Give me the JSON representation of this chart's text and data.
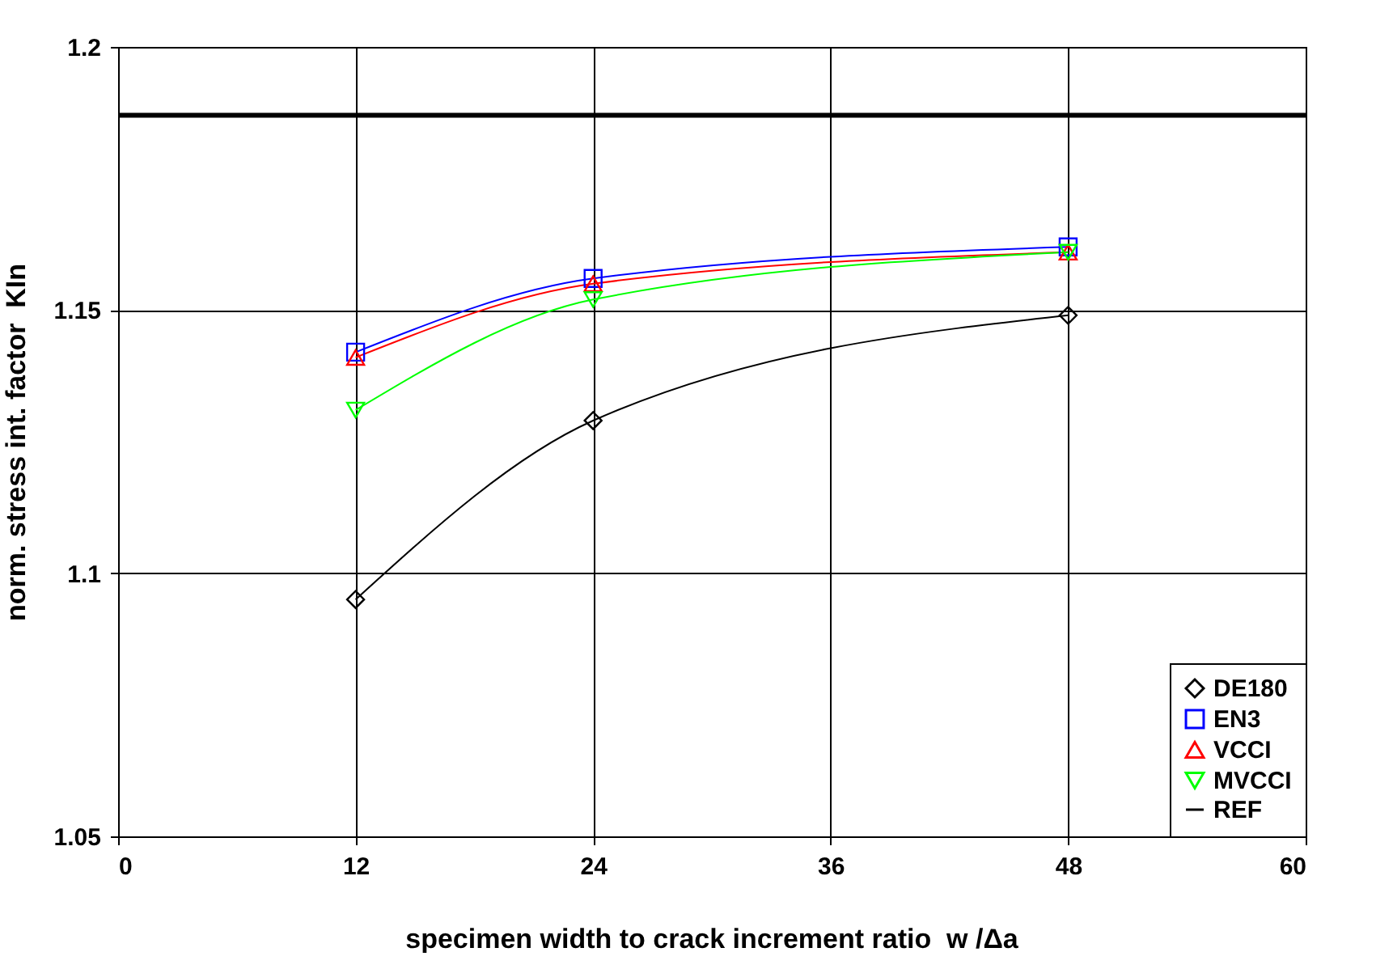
{
  "chart_data": {
    "type": "line",
    "xlabel": "specimen width to crack increment ratio  w /Δa",
    "ylabel": "norm. stress int. factor  KIn",
    "x": [
      12,
      24,
      48
    ],
    "xlim": [
      0,
      60
    ],
    "xticks": [
      0,
      12,
      24,
      36,
      48,
      60
    ],
    "ylim": [
      1.05,
      1.2
    ],
    "yticks": [
      1.05,
      1.1,
      1.15,
      1.2
    ],
    "grid": true,
    "legend": "bottom right",
    "line_style": "solid",
    "series": [
      {
        "name": "DE180",
        "color": "#000000",
        "marker": "diamond",
        "values": [
          1.095,
          1.129,
          1.149
        ]
      },
      {
        "name": "EN3",
        "color": "#0000ff",
        "marker": "square",
        "values": [
          1.142,
          1.156,
          1.162
        ]
      },
      {
        "name": "VCCI",
        "color": "#ff0000",
        "marker": "triangle",
        "values": [
          1.141,
          1.155,
          1.161
        ]
      },
      {
        "name": "MVCCI",
        "color": "#00ff00",
        "marker": "triangle-down",
        "values": [
          1.131,
          1.152,
          1.161
        ]
      },
      {
        "name": "REF",
        "color": "#000000",
        "marker": "none",
        "x": [
          0,
          60
        ],
        "values": [
          1.187,
          1.187
        ]
      }
    ]
  }
}
